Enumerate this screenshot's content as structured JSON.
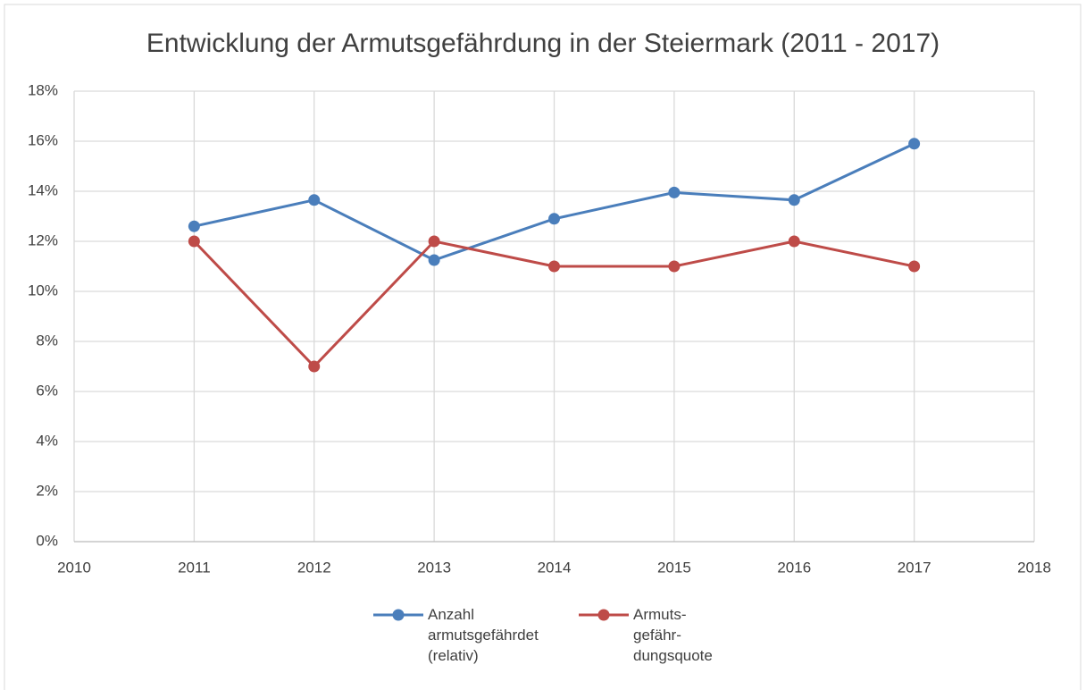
{
  "chart_data": {
    "type": "line",
    "title": "Entwicklung der Armutsgefährdung in der Steiermark (2011 - 2017)",
    "x": [
      2011,
      2012,
      2013,
      2014,
      2015,
      2016,
      2017
    ],
    "series": [
      {
        "name": "Anzahl armutsgefährdet (relativ)",
        "color": "#4a7ebb",
        "values": [
          12.6,
          13.65,
          11.25,
          12.9,
          13.95,
          13.65,
          15.9
        ]
      },
      {
        "name": "Armuts-gefähr-dungsquote",
        "color": "#be4b48",
        "values": [
          12,
          7,
          12,
          11,
          11,
          12,
          11
        ]
      }
    ],
    "xlim": [
      2010,
      2018
    ],
    "xticks": [
      2010,
      2011,
      2012,
      2013,
      2014,
      2015,
      2016,
      2017,
      2018
    ],
    "ylim": [
      0,
      18
    ],
    "yticks": [
      {
        "value": 0,
        "label": "0%"
      },
      {
        "value": 2,
        "label": "2%"
      },
      {
        "value": 4,
        "label": "4%"
      },
      {
        "value": 6,
        "label": "6%"
      },
      {
        "value": 8,
        "label": "8%"
      },
      {
        "value": 10,
        "label": "10%"
      },
      {
        "value": 12,
        "label": "12%"
      },
      {
        "value": 14,
        "label": "14%"
      },
      {
        "value": 16,
        "label": "16%"
      },
      {
        "value": 18,
        "label": "18%"
      }
    ],
    "grid": true,
    "legend": "bottom"
  }
}
